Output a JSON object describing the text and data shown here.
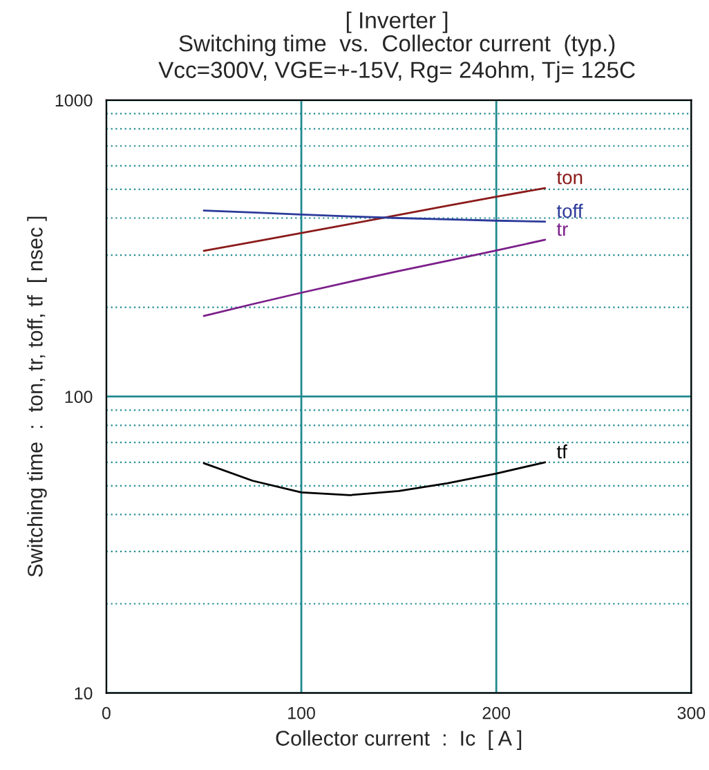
{
  "chart_data": {
    "type": "line",
    "title": "[ Inverter ]",
    "subtitle": "Switching time  vs.  Collector current  (typ.)\nVcc=300V, VGE=+-15V, Rg= 24ohm, Tj= 125C",
    "xlabel": "Collector current  :  Ic  [ A ]",
    "ylabel": "Switching time  :  ton, tr, toff, tf  [ nsec ]",
    "x": [
      50,
      75,
      100,
      125,
      150,
      175,
      200,
      225
    ],
    "series": [
      {
        "name": "ton",
        "color": "#8b1a1a",
        "values": [
          310,
          332,
          356,
          382,
          410,
          440,
          472,
          505
        ]
      },
      {
        "name": "toff",
        "color": "#2b3a9a",
        "values": [
          424,
          418,
          411,
          405,
          400,
          396,
          392,
          389
        ]
      },
      {
        "name": "tr",
        "color": "#7b1f8a",
        "values": [
          187,
          205,
          224,
          244,
          265,
          287,
          311,
          338
        ]
      },
      {
        "name": "tf",
        "color": "#000000",
        "values": [
          59.6,
          52,
          47.5,
          46.5,
          48,
          51,
          55,
          60
        ]
      }
    ],
    "log": "y",
    "xlim": [
      0,
      300
    ],
    "xticks": [
      0,
      100,
      200,
      300
    ],
    "ylim": [
      10,
      1000
    ],
    "yticks": [
      10,
      {
        "value": 20,
        "label": null
      },
      {
        "value": 30,
        "label": null
      },
      {
        "value": 40,
        "label": null
      },
      {
        "value": 50,
        "label": null
      },
      {
        "value": 60,
        "label": null
      },
      {
        "value": 70,
        "label": null
      },
      {
        "value": 80,
        "label": null
      },
      {
        "value": 90,
        "label": null
      },
      100,
      {
        "value": 200,
        "label": null
      },
      {
        "value": 300,
        "label": null
      },
      {
        "value": 400,
        "label": null
      },
      {
        "value": 500,
        "label": null
      },
      {
        "value": 600,
        "label": null
      },
      {
        "value": 700,
        "label": null
      },
      {
        "value": 800,
        "label": null
      },
      {
        "value": 900,
        "label": null
      },
      1000
    ],
    "grid": true,
    "legend": false,
    "marker": "none",
    "line_style": "solid"
  }
}
